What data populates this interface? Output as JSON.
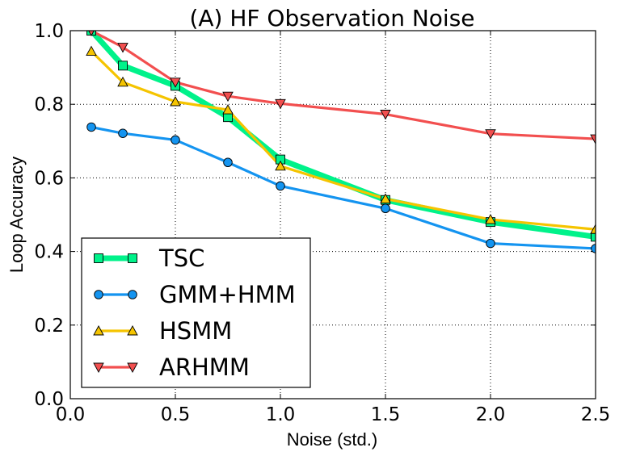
{
  "chart_data": {
    "type": "line",
    "title": "(A) HF Observation Noise",
    "xlabel": "Noise (std.)",
    "ylabel": "Loop Accuracy",
    "xlim": [
      0.0,
      2.5
    ],
    "ylim": [
      0.0,
      1.0
    ],
    "xticks": [
      "0.0",
      "0.5",
      "1.0",
      "1.5",
      "2.0",
      "2.5"
    ],
    "yticks": [
      "0.0",
      "0.2",
      "0.4",
      "0.6",
      "0.8",
      "1.0"
    ],
    "grid": true,
    "legend_position": "lower-left",
    "x": [
      0.1,
      0.25,
      0.5,
      0.75,
      1.0,
      1.5,
      2.0,
      2.5
    ],
    "series": [
      {
        "name": "TSC",
        "color": "#00f28a",
        "marker": "square",
        "values": [
          1.0,
          0.905,
          0.85,
          0.765,
          0.65,
          0.54,
          0.48,
          0.44
        ]
      },
      {
        "name": "GMM+HMM",
        "color": "#1494f0",
        "marker": "circle",
        "values": [
          0.738,
          0.721,
          0.703,
          0.642,
          0.578,
          0.517,
          0.422,
          0.408
        ]
      },
      {
        "name": "HSMM",
        "color": "#f5c400",
        "marker": "triangle-up",
        "values": [
          0.944,
          0.86,
          0.807,
          0.785,
          0.632,
          0.543,
          0.487,
          0.46
        ]
      },
      {
        "name": "ARHMM",
        "color": "#f24f4f",
        "marker": "triangle-down",
        "values": [
          1.0,
          0.955,
          0.86,
          0.822,
          0.802,
          0.773,
          0.72,
          0.706
        ]
      }
    ]
  }
}
